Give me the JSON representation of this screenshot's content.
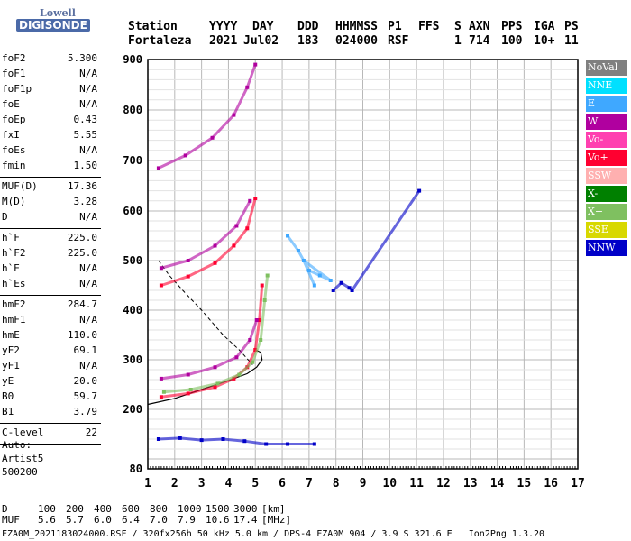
{
  "logo": {
    "line1": "Lowell",
    "line2": "DIGISONDE"
  },
  "header": {
    "labels": [
      "Station",
      "YYYY",
      "DAY",
      "DDD",
      "HHMMSS",
      "P1",
      "FFS",
      "S",
      "AXN",
      "PPS",
      "IGA",
      "PS"
    ],
    "values": [
      "Fortaleza",
      "2021",
      "Jul02",
      "183",
      "024000",
      "RSF",
      "1",
      "714",
      "100",
      "10+",
      "11"
    ]
  },
  "params": {
    "group1": [
      {
        "name": "foF2",
        "value": "5.300"
      },
      {
        "name": "foF1",
        "value": "N/A"
      },
      {
        "name": "foF1p",
        "value": "N/A"
      },
      {
        "name": "foE",
        "value": "N/A"
      },
      {
        "name": "foEp",
        "value": "0.43"
      },
      {
        "name": "fxI",
        "value": "5.55"
      },
      {
        "name": "foEs",
        "value": "N/A"
      },
      {
        "name": "fmin",
        "value": "1.50"
      }
    ],
    "group2": [
      {
        "name": "MUF(D)",
        "value": "17.36"
      },
      {
        "name": "M(D)",
        "value": "3.28"
      },
      {
        "name": "D",
        "value": "N/A"
      }
    ],
    "group3": [
      {
        "name": "h`F",
        "value": "225.0"
      },
      {
        "name": "h`F2",
        "value": "225.0"
      },
      {
        "name": "h`E",
        "value": "N/A"
      },
      {
        "name": "h`Es",
        "value": "N/A"
      }
    ],
    "group4": [
      {
        "name": "hmF2",
        "value": "284.7"
      },
      {
        "name": "hmF1",
        "value": "N/A"
      },
      {
        "name": "hmE",
        "value": "110.0"
      },
      {
        "name": "yF2",
        "value": "69.1"
      },
      {
        "name": "yF1",
        "value": "N/A"
      },
      {
        "name": "yE",
        "value": "20.0"
      },
      {
        "name": "B0",
        "value": "59.7"
      },
      {
        "name": "B1",
        "value": "3.79"
      }
    ],
    "group5": [
      {
        "name": "C-level",
        "value": "22"
      }
    ]
  },
  "auto": {
    "line1": "Auto:",
    "line2": "Artist5",
    "line3": "500200"
  },
  "legend": [
    {
      "label": "NoVal",
      "color": "#808080"
    },
    {
      "label": "NNE",
      "color": "#00e0ff"
    },
    {
      "label": "E",
      "color": "#3fa8ff"
    },
    {
      "label": "W",
      "color": "#b0009f"
    },
    {
      "label": "Vo-",
      "color": "#ff40b0"
    },
    {
      "label": "Vo+",
      "color": "#ff0030"
    },
    {
      "label": "SSW",
      "color": "#ffb0b0"
    },
    {
      "label": "X-",
      "color": "#008000"
    },
    {
      "label": "X+",
      "color": "#7fc060"
    },
    {
      "label": "SSE",
      "color": "#d8d800"
    },
    {
      "label": "NNW",
      "color": "#0000c8"
    }
  ],
  "bottom": {
    "d_label": "D",
    "d_values": [
      "100",
      "200",
      "400",
      "600",
      "800",
      "1000",
      "1500",
      "3000"
    ],
    "d_unit": "[km]",
    "muf_label": "MUF",
    "muf_values": [
      "5.6",
      "5.7",
      "6.0",
      "6.4",
      "7.0",
      "7.9",
      "10.6",
      "17.4"
    ],
    "muf_unit": "[MHz]"
  },
  "footer": "FZA0M_2021183024000.RSF / 320fx256h 50 kHz 5.0 km / DPS-4 FZA0M 904 / 3.9 S 321.6 E   Ion2Png 1.3.20",
  "chart_data": {
    "type": "scatter",
    "title": "",
    "xlabel": "",
    "ylabel": "",
    "xlim": [
      1,
      17
    ],
    "ylim": [
      80,
      900
    ],
    "x_ticks": [
      "1",
      "2",
      "3",
      "4",
      "5",
      "6",
      "7",
      "8",
      "9",
      "10",
      "11",
      "12",
      "13",
      "14",
      "15",
      "16",
      "17"
    ],
    "y_ticks": [
      "80",
      "200",
      "300",
      "400",
      "500",
      "600",
      "700",
      "800",
      "900"
    ],
    "y_tick_values": [
      80,
      200,
      300,
      400,
      500,
      600,
      700,
      800,
      900
    ],
    "grid": true,
    "legend_position": "right",
    "series": [
      {
        "name": "Vo+",
        "color": "#ff0030",
        "points": [
          [
            1.5,
            225
          ],
          [
            2.5,
            232
          ],
          [
            3.5,
            245
          ],
          [
            4.2,
            262
          ],
          [
            4.7,
            285
          ],
          [
            5.0,
            320
          ],
          [
            5.15,
            380
          ],
          [
            5.25,
            450
          ]
        ]
      },
      {
        "name": "X+",
        "color": "#7fc060",
        "points": [
          [
            1.6,
            235
          ],
          [
            2.6,
            240
          ],
          [
            3.6,
            252
          ],
          [
            4.4,
            270
          ],
          [
            4.9,
            295
          ],
          [
            5.2,
            340
          ],
          [
            5.35,
            420
          ],
          [
            5.45,
            470
          ]
        ]
      },
      {
        "name": "W",
        "color": "#b0009f",
        "points": [
          [
            1.5,
            262
          ],
          [
            2.5,
            270
          ],
          [
            3.5,
            285
          ],
          [
            4.3,
            305
          ],
          [
            4.8,
            340
          ],
          [
            5.05,
            380
          ]
        ]
      },
      {
        "name": "Vo+ 2nd hop",
        "color": "#ff0030",
        "points": [
          [
            1.5,
            450
          ],
          [
            2.5,
            468
          ],
          [
            3.5,
            495
          ],
          [
            4.2,
            530
          ],
          [
            4.7,
            565
          ],
          [
            5.0,
            625
          ]
        ]
      },
      {
        "name": "W 2nd hop",
        "color": "#b0009f",
        "points": [
          [
            1.5,
            485
          ],
          [
            2.5,
            500
          ],
          [
            3.5,
            530
          ],
          [
            4.3,
            570
          ],
          [
            4.8,
            620
          ]
        ]
      },
      {
        "name": "W 3rd hop",
        "color": "#b0009f",
        "points": [
          [
            1.4,
            685
          ],
          [
            2.4,
            710
          ],
          [
            3.4,
            745
          ],
          [
            4.2,
            790
          ],
          [
            4.7,
            845
          ],
          [
            5.0,
            890
          ]
        ]
      },
      {
        "name": "E",
        "color": "#3fa8ff",
        "points": [
          [
            6.2,
            550
          ],
          [
            6.6,
            520
          ],
          [
            7.0,
            480
          ],
          [
            7.4,
            470
          ],
          [
            7.8,
            460
          ],
          [
            6.8,
            500
          ],
          [
            7.2,
            450
          ]
        ]
      },
      {
        "name": "NNW",
        "color": "#0000c8",
        "points": [
          [
            7.9,
            440
          ],
          [
            8.2,
            455
          ],
          [
            8.5,
            445
          ],
          [
            8.6,
            440
          ],
          [
            11.1,
            640
          ]
        ]
      },
      {
        "name": "Es",
        "color": "#0000c8",
        "points": [
          [
            1.4,
            140
          ],
          [
            2.2,
            142
          ],
          [
            3.0,
            138
          ],
          [
            3.8,
            140
          ],
          [
            4.6,
            136
          ],
          [
            5.4,
            130
          ],
          [
            6.2,
            130
          ],
          [
            7.2,
            130
          ]
        ]
      }
    ],
    "model_curve": [
      [
        1.0,
        210
      ],
      [
        2.0,
        222
      ],
      [
        3.0,
        240
      ],
      [
        4.0,
        258
      ],
      [
        4.7,
        272
      ],
      [
        5.05,
        285
      ],
      [
        5.25,
        300
      ],
      [
        5.2,
        315
      ],
      [
        5.0,
        320
      ]
    ],
    "model_curve2": [
      [
        1.4,
        500
      ],
      [
        1.8,
        470
      ],
      [
        2.3,
        440
      ],
      [
        3.0,
        400
      ],
      [
        3.8,
        350
      ],
      [
        4.4,
        320
      ],
      [
        4.9,
        290
      ]
    ]
  }
}
